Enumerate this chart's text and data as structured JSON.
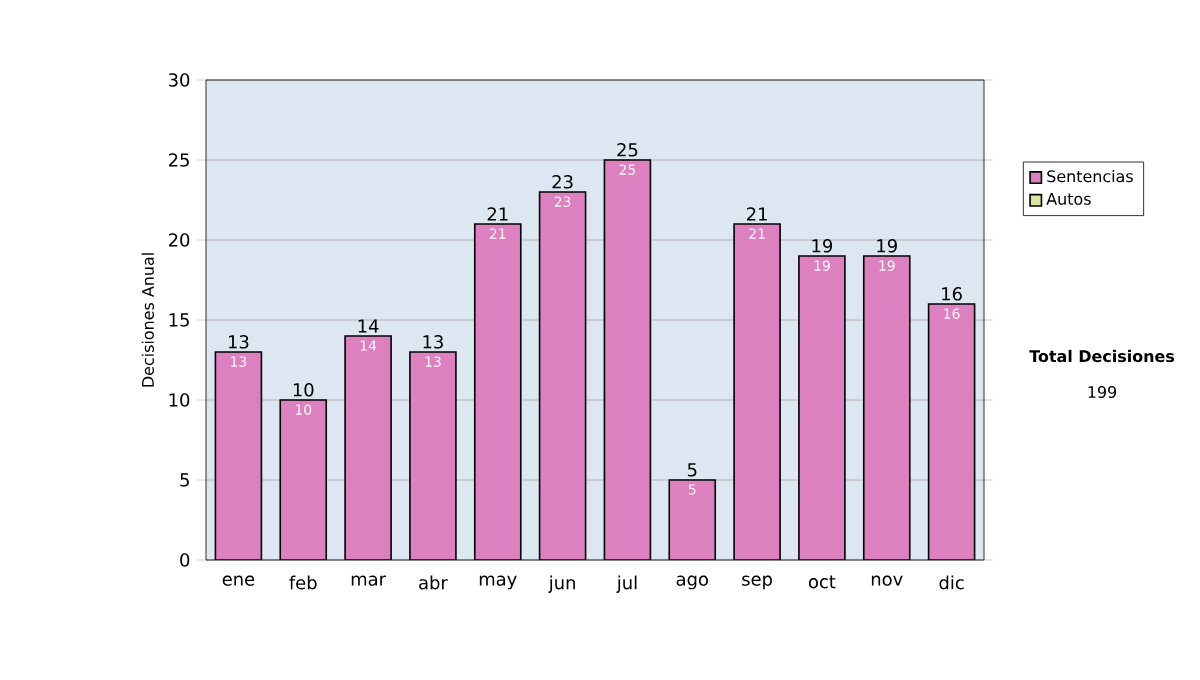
{
  "chart_data": {
    "type": "bar",
    "stacked": true,
    "ylabel": "Decisiones Anual",
    "categories": [
      "ene",
      "feb",
      "mar",
      "abr",
      "may",
      "jun",
      "jul",
      "ago",
      "sep",
      "oct",
      "nov",
      "dic"
    ],
    "series": [
      {
        "name": "Sentencias",
        "color": "#dd80c0",
        "values": [
          13,
          10,
          14,
          13,
          21,
          23,
          25,
          5,
          21,
          19,
          19,
          16
        ],
        "value_labels": [
          "13",
          "10",
          "14",
          "13",
          "21",
          "23",
          "25",
          "5",
          "21",
          "19",
          "19",
          "16"
        ]
      },
      {
        "name": "Autos",
        "color": "#d8e8a0",
        "values": [
          0,
          0,
          0,
          0,
          0,
          0,
          0,
          0,
          0,
          0,
          0,
          0
        ]
      }
    ],
    "totals": [
      "13",
      "10",
      "14",
      "13",
      "21",
      "23",
      "25",
      "5",
      "21",
      "19",
      "19",
      "16"
    ],
    "ylim": [
      0,
      30
    ],
    "yticks": [
      0,
      5,
      10,
      15,
      20,
      25,
      30
    ],
    "grid": "y",
    "legend": "right",
    "annotations": [
      "**Total Decisiones**",
      "199"
    ]
  }
}
